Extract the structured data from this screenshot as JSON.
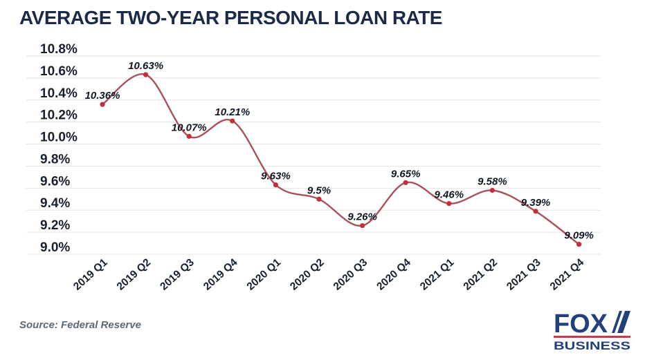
{
  "page": {
    "title": "AVERAGE TWO-YEAR PERSONAL LOAN RATE"
  },
  "source_note": "Source: Federal Reserve",
  "logo": {
    "brand": "FOX",
    "division": "BUSINESS"
  },
  "colors": {
    "title_navy": "#1b2a47",
    "axis_label": "#17212e",
    "data_label": "#0f1722",
    "gridline": "#e5e5e5",
    "line": "#a8505c",
    "marker": "#c42f3b",
    "source_text": "#5d6974",
    "logo_navy": "#22407c",
    "logo_red": "#c53b4b"
  },
  "chart_data": {
    "type": "line",
    "title": "AVERAGE TWO-YEAR PERSONAL LOAN RATE",
    "categories": [
      "2019 Q1",
      "2019 Q2",
      "2019 Q3",
      "2019 Q4",
      "2020 Q1",
      "2020 Q2",
      "2020 Q3",
      "2020 Q4",
      "2021 Q1",
      "2021 Q2",
      "2021 Q3",
      "2021 Q4"
    ],
    "values": [
      10.36,
      10.63,
      10.07,
      10.21,
      9.63,
      9.5,
      9.26,
      9.65,
      9.46,
      9.58,
      9.39,
      9.09
    ],
    "point_labels": [
      "10.36%",
      "10.63%",
      "10.07%",
      "10.21%",
      "9.63%",
      "9.5%",
      "9.26%",
      "9.65%",
      "9.46%",
      "9.58%",
      "9.39%",
      "9.09%"
    ],
    "xlabel": "",
    "ylabel": "",
    "ylim": [
      9.0,
      10.8
    ],
    "ytick_step": 0.2,
    "ytick_suffix": "%",
    "grid": true,
    "legend": "none",
    "smooth": true,
    "marker_style": "dot",
    "source": "Source: Federal Reserve"
  }
}
